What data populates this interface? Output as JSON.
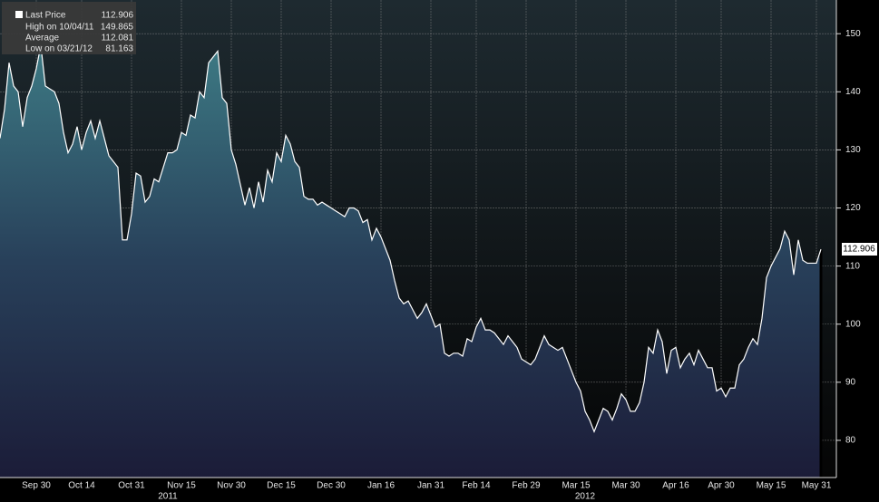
{
  "chart_data": {
    "type": "area",
    "legend": [
      {
        "label": "Last Price",
        "value": 112.906
      },
      {
        "label": "High on 10/04/11",
        "value": 149.865
      },
      {
        "label": "Average",
        "value": 112.081
      },
      {
        "label": "Low on 03/21/12",
        "value": 81.163
      }
    ],
    "last_price_tag": 112.906,
    "year_labels": [
      "2011",
      "2012"
    ],
    "categories": [
      null,
      null,
      null,
      null,
      null,
      null,
      null,
      null,
      "Sep 30",
      null,
      null,
      null,
      null,
      null,
      null,
      null,
      null,
      null,
      "Oct 14",
      null,
      null,
      null,
      null,
      null,
      null,
      null,
      null,
      null,
      null,
      "Oct 31",
      null,
      null,
      null,
      null,
      null,
      null,
      null,
      null,
      null,
      null,
      "Nov 15",
      null,
      null,
      null,
      null,
      null,
      null,
      null,
      null,
      null,
      null,
      "Nov 30",
      null,
      null,
      null,
      null,
      null,
      null,
      null,
      null,
      null,
      null,
      "Dec 15",
      null,
      null,
      null,
      null,
      null,
      null,
      null,
      null,
      null,
      null,
      "Dec 30",
      null,
      null,
      null,
      null,
      null,
      null,
      null,
      null,
      null,
      null,
      "Jan 16",
      null,
      null,
      null,
      null,
      null,
      null,
      null,
      null,
      null,
      null,
      "Jan 31",
      null,
      null,
      null,
      null,
      null,
      null,
      null,
      null,
      null,
      "Feb 14",
      null,
      null,
      null,
      null,
      null,
      null,
      null,
      null,
      null,
      null,
      "Feb 29",
      null,
      null,
      null,
      null,
      null,
      null,
      null,
      null,
      null,
      null,
      "Mar 15",
      null,
      null,
      null,
      null,
      null,
      null,
      null,
      null,
      null,
      null,
      "Mar 30",
      null,
      null,
      null,
      null,
      null,
      null,
      null,
      null,
      null,
      null,
      "Apr 16",
      null,
      null,
      null,
      null,
      null,
      null,
      null,
      null,
      null,
      "Apr 30",
      null,
      null,
      null,
      null,
      null,
      null,
      null,
      null,
      null,
      null,
      "May 15",
      null,
      null,
      null,
      null,
      null,
      null,
      null,
      null,
      null,
      "May 31",
      null
    ],
    "series": [
      {
        "name": "Last Price",
        "color": "#ffffff",
        "values": [
          132,
          137,
          145,
          141,
          140,
          134,
          139,
          141,
          144,
          148,
          141,
          140.5,
          140,
          138,
          133,
          129.5,
          131,
          134,
          130,
          133,
          135,
          132,
          135,
          132,
          129,
          128,
          127,
          114.5,
          114.5,
          119,
          126,
          125.5,
          121,
          122,
          125,
          124.5,
          127,
          129.5,
          129.5,
          130,
          133,
          132.5,
          136,
          135.5,
          140,
          139,
          145,
          146,
          147,
          139,
          138,
          130,
          127.5,
          124,
          120.5,
          123.5,
          120,
          124.5,
          121,
          126.5,
          124.5,
          129.5,
          128,
          132.5,
          131,
          128,
          127,
          122,
          121.5,
          121.5,
          120.5,
          121,
          120.5,
          120,
          119.5,
          119,
          118.5,
          120,
          120,
          119.5,
          117.5,
          118,
          114.5,
          116.5,
          115,
          113,
          111,
          107.5,
          104.5,
          103.5,
          104,
          102.5,
          101,
          102,
          103.5,
          101.5,
          99.5,
          100,
          95,
          94.5,
          95,
          95,
          94.5,
          97.5,
          97,
          99.5,
          101,
          99,
          99,
          98.5,
          97.5,
          96.5,
          98,
          97,
          96,
          94,
          93.5,
          93,
          94,
          96,
          98,
          96.5,
          96,
          95.5,
          96,
          94,
          92,
          90,
          88.5,
          85,
          83.5,
          81.5,
          83.5,
          85.5,
          85,
          83.5,
          85.5,
          88,
          87,
          85,
          85,
          86.5,
          90,
          96,
          95,
          99,
          97,
          91.5,
          95.5,
          96,
          92.5,
          94,
          95,
          93,
          95.5,
          94,
          92.5,
          92.5,
          88.5,
          89,
          87.5,
          89,
          89,
          93,
          94,
          96,
          97.5,
          96.5,
          101,
          108,
          110,
          111.5,
          113,
          116,
          114.5,
          108.5,
          114.5,
          111,
          110.5,
          110.5,
          110.5,
          112.9
        ]
      }
    ],
    "ylim": [
      73.6,
      155.8
    ],
    "yticks": [
      80,
      90,
      100,
      110,
      120,
      130,
      140,
      150
    ],
    "grid": true
  }
}
